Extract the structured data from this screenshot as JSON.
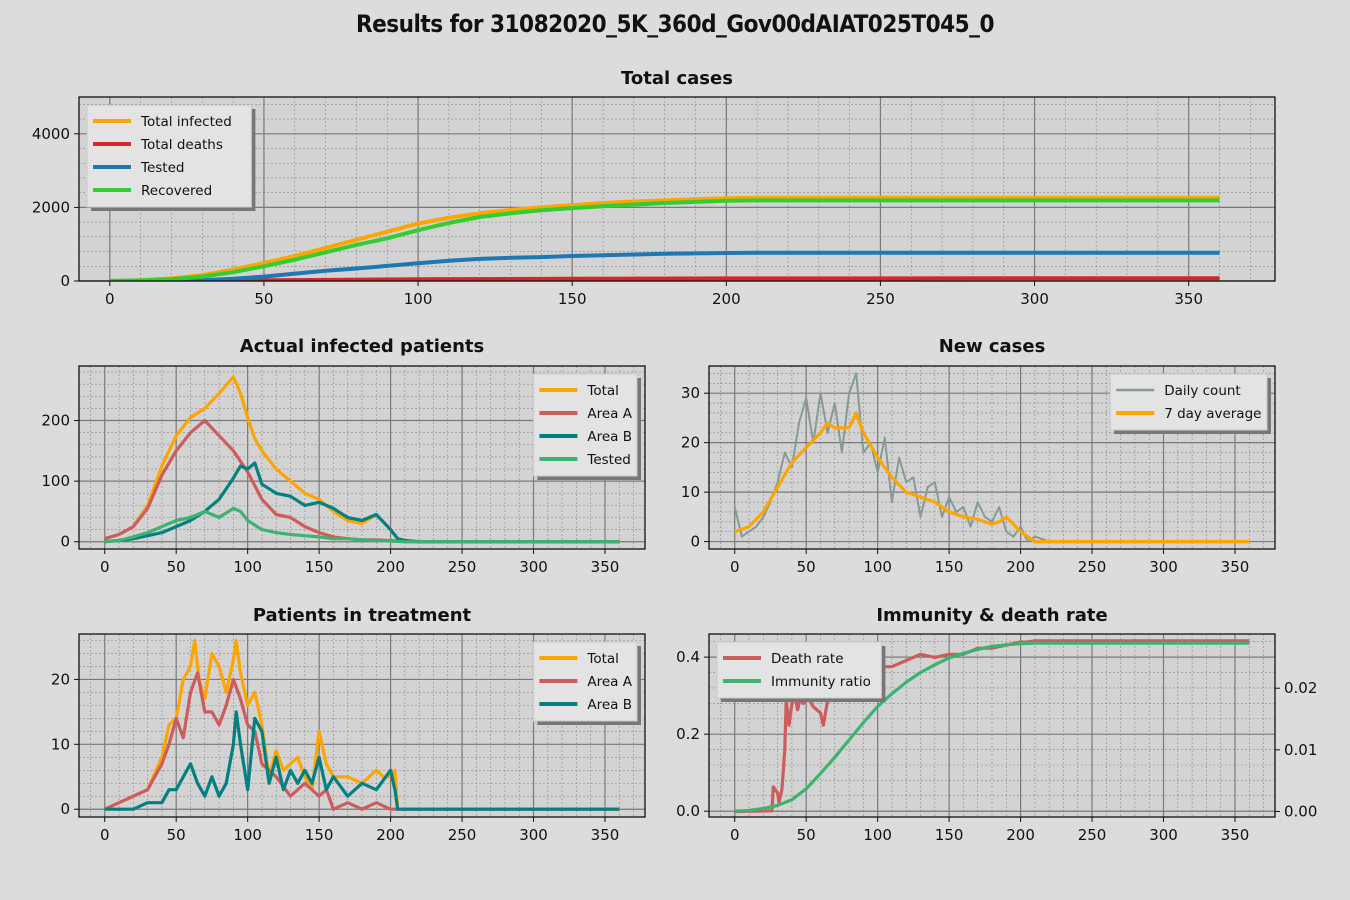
{
  "page": {
    "title": "Results for 31082020_5K_360d_Gov00dAIAT025T045_0"
  },
  "colors": {
    "background": "#dcdcdc",
    "axes_bg": "#d3d3d3",
    "orange": "#ffa500",
    "red": "#d62728",
    "blue": "#1f77b4",
    "green": "#32cd32",
    "indianred": "#cd5c5c",
    "teal": "#008080",
    "medgreen": "#3cb371",
    "gray": "#869a96"
  },
  "chart_data": [
    {
      "id": "total_cases",
      "type": "line",
      "title": "Total cases",
      "xlim": [
        -10,
        378
      ],
      "ylim": [
        0,
        5000
      ],
      "xticks": [
        0,
        50,
        100,
        150,
        200,
        250,
        300,
        350
      ],
      "yticks": [
        0,
        2000,
        4000
      ],
      "grid": true,
      "legend": "top-left",
      "series": [
        {
          "name": "Total infected",
          "color": "#ffa500",
          "x": [
            0,
            10,
            20,
            30,
            40,
            50,
            60,
            70,
            80,
            90,
            100,
            110,
            120,
            130,
            140,
            150,
            160,
            170,
            180,
            190,
            200,
            210,
            220,
            250,
            300,
            360
          ],
          "y": [
            0,
            20,
            70,
            160,
            310,
            490,
            680,
            900,
            1120,
            1340,
            1560,
            1720,
            1840,
            1930,
            2000,
            2060,
            2120,
            2160,
            2190,
            2220,
            2250,
            2260,
            2260,
            2260,
            2260,
            2260
          ]
        },
        {
          "name": "Total deaths",
          "color": "#d62728",
          "x": [
            0,
            30,
            60,
            100,
            150,
            200,
            360
          ],
          "y": [
            0,
            8,
            25,
            45,
            60,
            72,
            75
          ]
        },
        {
          "name": "Tested",
          "color": "#1f77b4",
          "x": [
            0,
            30,
            40,
            50,
            60,
            70,
            80,
            90,
            100,
            110,
            120,
            130,
            140,
            150,
            160,
            170,
            180,
            190,
            200,
            210,
            250,
            300,
            360
          ],
          "y": [
            0,
            20,
            60,
            120,
            200,
            280,
            340,
            410,
            480,
            550,
            600,
            630,
            650,
            680,
            700,
            720,
            740,
            750,
            760,
            765,
            765,
            765,
            765
          ]
        },
        {
          "name": "Recovered",
          "color": "#32cd32",
          "x": [
            0,
            10,
            20,
            30,
            40,
            50,
            60,
            70,
            80,
            90,
            100,
            110,
            120,
            130,
            140,
            150,
            160,
            170,
            180,
            190,
            200,
            210,
            250,
            300,
            360
          ],
          "y": [
            0,
            15,
            50,
            120,
            240,
            400,
            580,
            780,
            980,
            1160,
            1380,
            1580,
            1740,
            1840,
            1920,
            1980,
            2030,
            2080,
            2120,
            2150,
            2180,
            2190,
            2190,
            2190,
            2190
          ]
        }
      ]
    },
    {
      "id": "actual_infected",
      "type": "line",
      "title": "Actual infected patients",
      "xlim": [
        -18,
        378
      ],
      "ylim": [
        -12,
        290
      ],
      "xticks": [
        0,
        50,
        100,
        150,
        200,
        250,
        300,
        350
      ],
      "yticks": [
        0,
        100,
        200
      ],
      "grid": true,
      "legend": "top-right",
      "series": [
        {
          "name": "Total",
          "color": "#ffa500",
          "x": [
            0,
            10,
            20,
            30,
            40,
            50,
            60,
            70,
            80,
            90,
            95,
            100,
            105,
            110,
            120,
            130,
            140,
            150,
            160,
            170,
            180,
            190,
            200,
            205,
            210,
            220,
            250,
            300,
            360
          ],
          "y": [
            5,
            12,
            25,
            60,
            125,
            175,
            205,
            220,
            245,
            272,
            245,
            205,
            170,
            150,
            120,
            100,
            80,
            70,
            50,
            35,
            30,
            45,
            20,
            5,
            2,
            0,
            0,
            0,
            0
          ]
        },
        {
          "name": "Area A",
          "color": "#cd5c5c",
          "x": [
            0,
            10,
            20,
            30,
            40,
            50,
            60,
            70,
            80,
            90,
            100,
            110,
            120,
            130,
            140,
            150,
            160,
            170,
            180,
            190,
            200,
            210,
            360
          ],
          "y": [
            5,
            12,
            25,
            55,
            110,
            150,
            180,
            200,
            175,
            150,
            115,
            70,
            45,
            40,
            25,
            15,
            8,
            5,
            3,
            3,
            2,
            0,
            0
          ]
        },
        {
          "name": "Area B",
          "color": "#008080",
          "x": [
            0,
            10,
            20,
            30,
            40,
            50,
            60,
            70,
            80,
            90,
            95,
            100,
            105,
            110,
            120,
            130,
            140,
            150,
            160,
            170,
            180,
            190,
            200,
            205,
            210,
            220,
            360
          ],
          "y": [
            0,
            2,
            5,
            10,
            15,
            25,
            35,
            50,
            70,
            105,
            125,
            120,
            130,
            95,
            80,
            75,
            60,
            65,
            55,
            40,
            35,
            45,
            20,
            5,
            2,
            0,
            0
          ]
        },
        {
          "name": "Tested",
          "color": "#3cb371",
          "x": [
            0,
            10,
            20,
            30,
            40,
            50,
            60,
            70,
            80,
            90,
            95,
            100,
            110,
            120,
            130,
            140,
            150,
            160,
            170,
            180,
            190,
            200,
            210,
            360
          ],
          "y": [
            0,
            2,
            8,
            15,
            25,
            35,
            40,
            50,
            40,
            55,
            50,
            35,
            20,
            15,
            12,
            10,
            8,
            5,
            5,
            3,
            2,
            1,
            0,
            0
          ]
        }
      ]
    },
    {
      "id": "new_cases",
      "type": "line",
      "title": "New cases",
      "xlim": [
        -18,
        378
      ],
      "ylim": [
        -1.5,
        35.5
      ],
      "xticks": [
        0,
        50,
        100,
        150,
        200,
        250,
        300,
        350
      ],
      "yticks": [
        0,
        10,
        20,
        30
      ],
      "grid": true,
      "legend": "top-right",
      "series": [
        {
          "name": "Daily count",
          "color": "#869a96",
          "x": [
            0,
            5,
            10,
            15,
            20,
            25,
            30,
            35,
            40,
            45,
            50,
            55,
            60,
            65,
            70,
            75,
            80,
            85,
            90,
            95,
            100,
            105,
            110,
            115,
            120,
            125,
            130,
            135,
            140,
            145,
            150,
            155,
            160,
            165,
            170,
            175,
            180,
            185,
            190,
            195,
            200,
            205,
            210,
            220,
            360
          ],
          "y": [
            7,
            1,
            2,
            3,
            5,
            8,
            12,
            18,
            15,
            24,
            29,
            20,
            30,
            22,
            28,
            18,
            30,
            34,
            18,
            20,
            14,
            21,
            8,
            17,
            12,
            13,
            5,
            11,
            12,
            5,
            9,
            6,
            7,
            3,
            8,
            5,
            4,
            7,
            2,
            1,
            3,
            0,
            1,
            0,
            0
          ]
        },
        {
          "name": "7 day average",
          "color": "#ffa500",
          "x": [
            0,
            10,
            20,
            30,
            40,
            50,
            60,
            65,
            70,
            80,
            85,
            90,
            100,
            110,
            120,
            130,
            140,
            150,
            160,
            170,
            180,
            185,
            190,
            200,
            210,
            220,
            250,
            300,
            360
          ],
          "y": [
            2,
            3,
            6,
            11,
            16,
            19,
            22,
            24,
            23,
            23,
            26,
            22,
            17,
            13,
            10,
            9,
            8,
            6,
            5,
            4.5,
            3.5,
            4,
            5,
            2,
            0,
            0,
            0,
            0,
            0
          ]
        }
      ]
    },
    {
      "id": "patients_in_treatment",
      "type": "line",
      "title": "Patients in treatment",
      "xlim": [
        -18,
        378
      ],
      "ylim": [
        -1.2,
        27
      ],
      "xticks": [
        0,
        50,
        100,
        150,
        200,
        250,
        300,
        350
      ],
      "yticks": [
        0,
        10,
        20
      ],
      "grid": true,
      "legend": "top-right",
      "series": [
        {
          "name": "Total",
          "color": "#ffa500",
          "x": [
            0,
            10,
            20,
            30,
            40,
            45,
            50,
            55,
            60,
            63,
            66,
            70,
            75,
            80,
            85,
            90,
            92,
            95,
            100,
            105,
            110,
            115,
            120,
            125,
            130,
            135,
            140,
            145,
            150,
            155,
            160,
            170,
            180,
            190,
            195,
            200,
            203,
            205,
            210,
            360
          ],
          "y": [
            0,
            1,
            2,
            3,
            8,
            13,
            14,
            20,
            22,
            26,
            20,
            17,
            24,
            22,
            18,
            23,
            26,
            21,
            16,
            18,
            13,
            5,
            9,
            6,
            7,
            8,
            5,
            3,
            12,
            7,
            5,
            5,
            4,
            6,
            5,
            5,
            6,
            0,
            0,
            0
          ]
        },
        {
          "name": "Area A",
          "color": "#cd5c5c",
          "x": [
            0,
            10,
            20,
            30,
            40,
            45,
            50,
            55,
            60,
            65,
            70,
            75,
            80,
            85,
            90,
            95,
            100,
            105,
            110,
            120,
            130,
            140,
            150,
            155,
            160,
            170,
            180,
            190,
            200,
            360
          ],
          "y": [
            0,
            1,
            2,
            3,
            7,
            10,
            14,
            11,
            18,
            21,
            15,
            15,
            13,
            16,
            20,
            17,
            13,
            12,
            7,
            5,
            2,
            4,
            2,
            3,
            0,
            1,
            0,
            1,
            0,
            0
          ]
        },
        {
          "name": "Area B",
          "color": "#008080",
          "x": [
            0,
            20,
            30,
            40,
            45,
            50,
            55,
            60,
            65,
            70,
            75,
            80,
            85,
            90,
            92,
            95,
            100,
            105,
            110,
            115,
            120,
            125,
            130,
            135,
            140,
            145,
            150,
            155,
            160,
            170,
            180,
            190,
            200,
            203,
            205,
            210,
            360
          ],
          "y": [
            0,
            0,
            1,
            1,
            3,
            3,
            5,
            7,
            4,
            2,
            5,
            2,
            4,
            10,
            15,
            10,
            3,
            14,
            12,
            4,
            8,
            3,
            6,
            4,
            6,
            4,
            8,
            3,
            5,
            2,
            4,
            3,
            6,
            3,
            0,
            0,
            0
          ]
        }
      ]
    },
    {
      "id": "immunity_death_rate",
      "type": "line",
      "title": "Immunity & death rate",
      "xlim": [
        -18,
        378
      ],
      "ylim": [
        -0.015,
        0.46
      ],
      "ylim_right": [
        -0.0009,
        0.0288
      ],
      "xticks": [
        0,
        50,
        100,
        150,
        200,
        250,
        300,
        350
      ],
      "yticks": [
        0.0,
        0.2,
        0.4
      ],
      "yticks_right": [
        0.0,
        0.01,
        0.02
      ],
      "ytick_labels": [
        "0.0",
        "0.2",
        "0.4"
      ],
      "ytick_labels_right": [
        "0.00",
        "0.01",
        "0.02"
      ],
      "grid": true,
      "legend": "top-left",
      "series": [
        {
          "name": "Death rate",
          "color": "#cd5c5c",
          "axis": "right",
          "x": [
            0,
            26,
            27,
            30,
            31,
            33,
            35,
            36,
            38,
            40,
            42,
            44,
            46,
            48,
            50,
            55,
            60,
            62,
            65,
            70,
            75,
            80,
            90,
            100,
            110,
            120,
            130,
            140,
            150,
            160,
            170,
            180,
            190,
            200,
            205,
            210,
            360
          ],
          "y": [
            0,
            0.0001,
            0.004,
            0.003,
            0.0015,
            0.0035,
            0.01,
            0.018,
            0.014,
            0.0175,
            0.019,
            0.0165,
            0.0185,
            0.0175,
            0.019,
            0.017,
            0.016,
            0.014,
            0.018,
            0.0195,
            0.021,
            0.0225,
            0.023,
            0.0235,
            0.0235,
            0.0245,
            0.0255,
            0.025,
            0.0255,
            0.0255,
            0.0265,
            0.0265,
            0.027,
            0.0275,
            0.0275,
            0.0277,
            0.0277
          ]
        },
        {
          "name": "Immunity ratio",
          "color": "#3cb371",
          "axis": "left",
          "x": [
            0,
            10,
            20,
            30,
            40,
            50,
            60,
            70,
            80,
            90,
            100,
            110,
            120,
            130,
            140,
            150,
            160,
            170,
            180,
            190,
            200,
            210,
            360
          ],
          "y": [
            0,
            0.002,
            0.007,
            0.015,
            0.03,
            0.058,
            0.098,
            0.14,
            0.185,
            0.23,
            0.272,
            0.305,
            0.335,
            0.36,
            0.38,
            0.398,
            0.41,
            0.42,
            0.428,
            0.432,
            0.435,
            0.436,
            0.436
          ]
        }
      ]
    }
  ]
}
